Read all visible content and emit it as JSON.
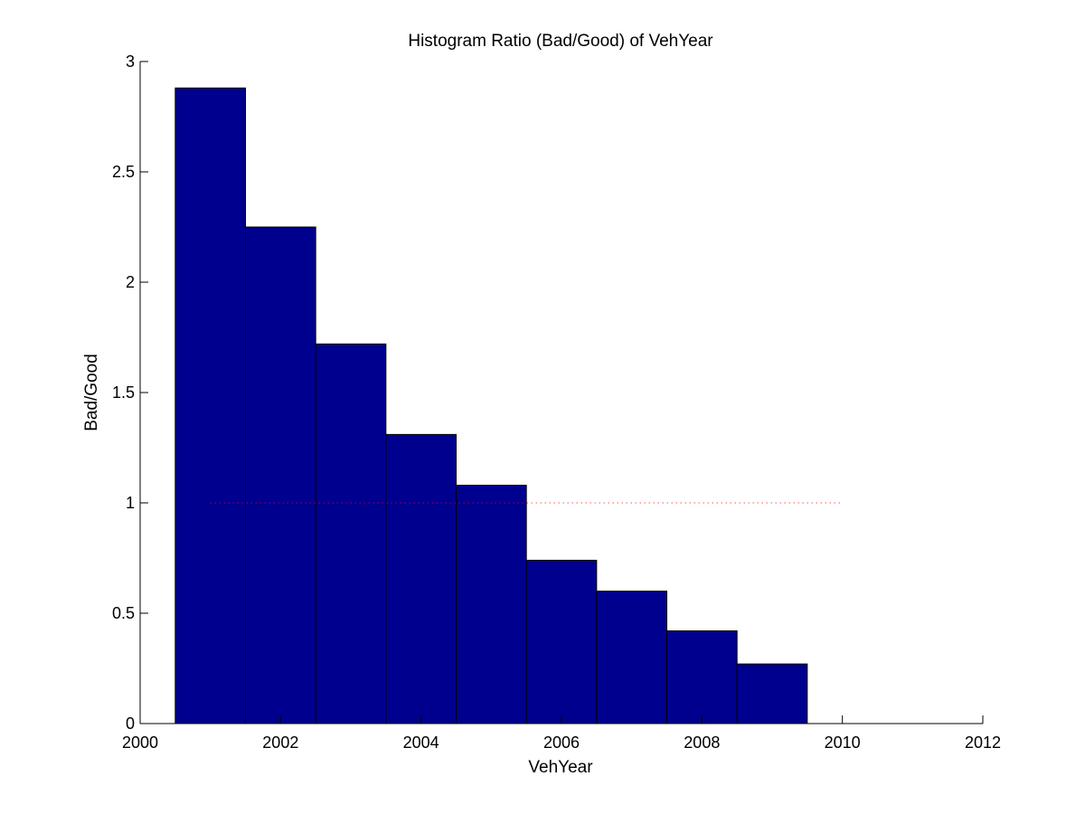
{
  "chart_data": {
    "type": "bar",
    "title": "Histogram Ratio (Bad/Good) of VehYear",
    "xlabel": "VehYear",
    "ylabel": "Bad/Good",
    "xlim": [
      2000,
      2012
    ],
    "ylim": [
      0,
      3
    ],
    "x_ticks": [
      2000,
      2002,
      2004,
      2006,
      2008,
      2010,
      2012
    ],
    "x_tick_labels": [
      "2000",
      "2002",
      "2004",
      "2006",
      "2008",
      "2010",
      "2012"
    ],
    "y_ticks": [
      0,
      0.5,
      1,
      1.5,
      2,
      2.5,
      3
    ],
    "y_tick_labels": [
      "0",
      "0.5",
      "1",
      "1.5",
      "2",
      "2.5",
      "3"
    ],
    "bar_width": 1,
    "x": [
      2001,
      2002,
      2003,
      2004,
      2005,
      2006,
      2007,
      2008,
      2009
    ],
    "values": [
      2.88,
      2.25,
      1.72,
      1.31,
      1.08,
      0.74,
      0.6,
      0.42,
      0.27
    ],
    "reference_line": {
      "y": 1,
      "x_range": [
        2001,
        2010
      ],
      "style": "dotted",
      "color": "#ff0000"
    },
    "bar_color": "#00008f",
    "bar_edge_color": "#000000",
    "grid": false,
    "legend": "none"
  }
}
